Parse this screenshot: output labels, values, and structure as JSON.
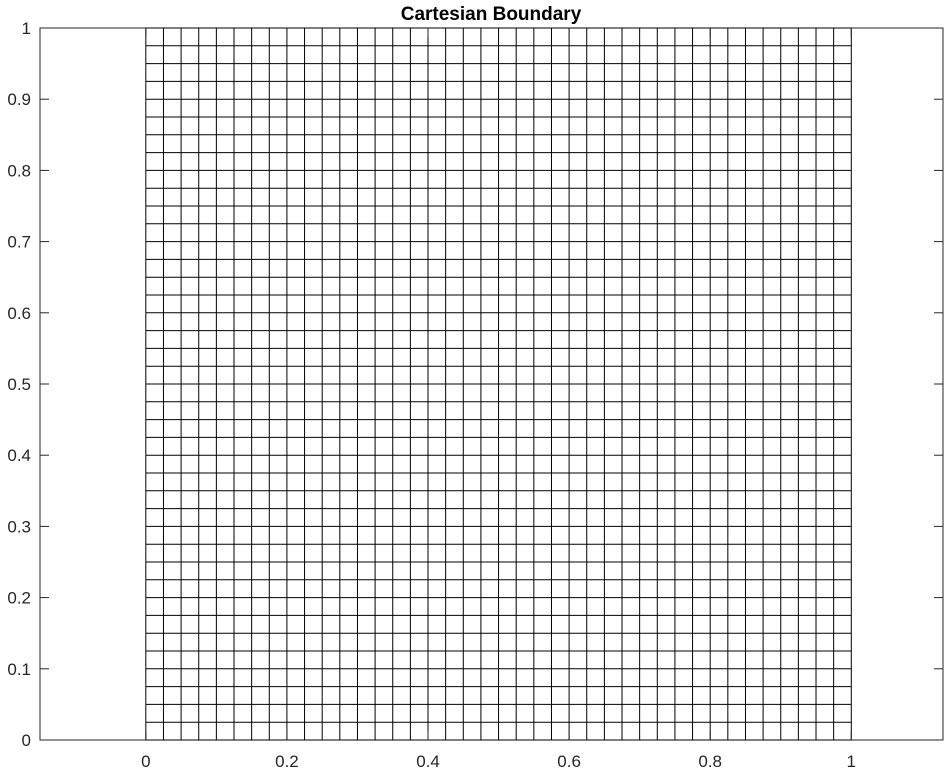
{
  "chart_data": {
    "type": "mesh",
    "title": "Cartesian Boundary",
    "xlabel": "",
    "ylabel": "",
    "xlim": [
      -0.15,
      1.13
    ],
    "ylim": [
      0,
      1
    ],
    "x_ticks": [
      0,
      0.2,
      0.4,
      0.6,
      0.8,
      1
    ],
    "x_tick_labels": [
      "0",
      "0.2",
      "0.4",
      "0.6",
      "0.8",
      "1"
    ],
    "y_ticks": [
      0,
      0.1,
      0.2,
      0.3,
      0.4,
      0.5,
      0.6,
      0.7,
      0.8,
      0.9,
      1
    ],
    "y_tick_labels": [
      "0",
      "0.1",
      "0.2",
      "0.3",
      "0.4",
      "0.5",
      "0.6",
      "0.7",
      "0.8",
      "0.9",
      "1"
    ],
    "mesh": {
      "x_range": [
        0,
        1
      ],
      "y_range": [
        0,
        1
      ],
      "x_divisions": 40,
      "y_divisions": 40
    },
    "grid": false,
    "box": true,
    "colors": {
      "mesh": "#000000",
      "axes": "#262626",
      "background": "#ffffff"
    }
  }
}
